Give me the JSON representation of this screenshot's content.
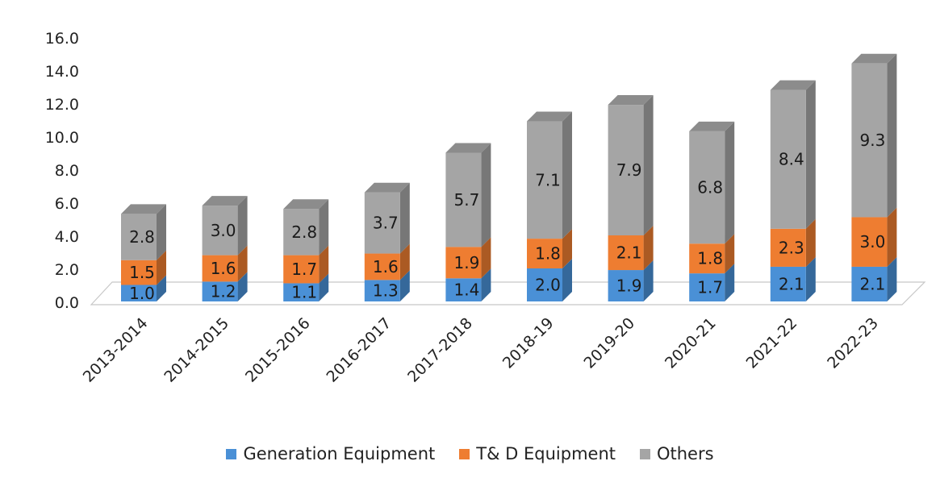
{
  "chart_data": {
    "type": "bar",
    "stacked": true,
    "style": "3d-column",
    "title": "",
    "xlabel": "",
    "ylabel": "",
    "ylim": [
      0,
      16
    ],
    "yticks": [
      "0.0",
      "2.0",
      "4.0",
      "6.0",
      "8.0",
      "10.0",
      "12.0",
      "14.0",
      "16.0"
    ],
    "grid": false,
    "legend_position": "bottom",
    "categories": [
      "2013-2014",
      "2014-2015",
      "2015-2016",
      "2016-2017",
      "2017-2018",
      "2018-19",
      "2019-20",
      "2020-21",
      "2021-22",
      "2022-23"
    ],
    "series": [
      {
        "name": "Generation Equipment",
        "color": "#4a90d6",
        "values": [
          1.0,
          1.2,
          1.1,
          1.3,
          1.4,
          2.0,
          1.9,
          1.7,
          2.1,
          2.1
        ],
        "labels": [
          "1.0",
          "1.2",
          "1.1",
          "1.3",
          "1.4",
          "2.0",
          "1.9",
          "1.7",
          "2.1",
          "2.1"
        ]
      },
      {
        "name": "T& D Equipment",
        "color": "#ee7d31",
        "values": [
          1.5,
          1.6,
          1.7,
          1.6,
          1.9,
          1.8,
          2.1,
          1.8,
          2.3,
          3.0
        ],
        "labels": [
          "1.5",
          "1.6",
          "1.7",
          "1.6",
          "1.9",
          "1.8",
          "2.1",
          "1.8",
          "2.3",
          "3.0"
        ]
      },
      {
        "name": "Others",
        "color": "#a5a5a5",
        "values": [
          2.8,
          3.0,
          2.8,
          3.7,
          5.7,
          7.1,
          7.9,
          6.8,
          8.4,
          9.3
        ],
        "labels": [
          "2.8",
          "3.0",
          "2.8",
          "3.7",
          "5.7",
          "7.1",
          "7.9",
          "6.8",
          "8.4",
          "9.3"
        ]
      }
    ]
  }
}
